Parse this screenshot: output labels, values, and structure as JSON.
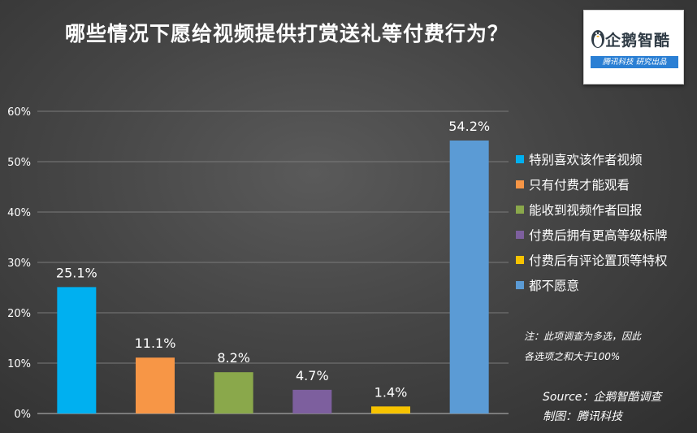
{
  "header": {
    "title": "哪些情况下愿给视频提供打赏送礼等付费行为？"
  },
  "logo": {
    "name": "企鹅智酷",
    "tagline": "腾讯科技  研究出品",
    "icon": "penguin-icon"
  },
  "chart_data": {
    "type": "bar",
    "categories": [
      "特别喜欢该作者视频",
      "只有付费才能观看",
      "能收到视频作者回报",
      "付费后拥有更高等级标牌",
      "付费后有评论置顶等特权",
      "都不愿意"
    ],
    "values": [
      25.1,
      11.1,
      8.2,
      4.7,
      1.4,
      54.2
    ],
    "value_labels": [
      "25.1%",
      "11.1%",
      "8.2%",
      "4.7%",
      "1.4%",
      "54.2%"
    ],
    "colors": [
      "#00b0f0",
      "#f79646",
      "#8aa84b",
      "#7d5f9e",
      "#f7c300",
      "#5b9bd5"
    ],
    "ylim": [
      0,
      60
    ],
    "y_ticks": [
      0,
      10,
      20,
      30,
      40,
      50,
      60
    ],
    "y_tick_labels": [
      "0%",
      "10%",
      "20%",
      "30%",
      "40%",
      "50%",
      "60%"
    ],
    "grid": true,
    "legend_position": "right"
  },
  "notes": {
    "line1": "注：此项调查为多选，因此",
    "line2": "各选项之和大于100%"
  },
  "source": {
    "line1": "Source：企鹅智酷调查",
    "line2": "制图：腾讯科技"
  }
}
